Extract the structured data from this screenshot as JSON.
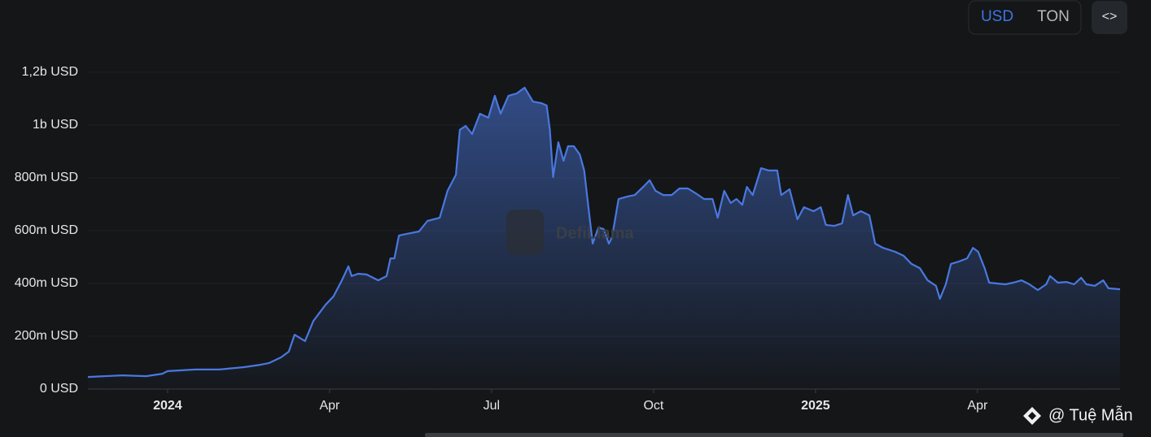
{
  "chart_data": {
    "type": "area",
    "x": [
      2023.877,
      2023.93,
      2023.967,
      2023.992,
      2024.0,
      2024.043,
      2024.08,
      2024.118,
      2024.143,
      2024.156,
      2024.175,
      2024.187,
      2024.196,
      2024.212,
      2024.225,
      2024.244,
      2024.256,
      2024.269,
      2024.279,
      2024.284,
      2024.294,
      2024.307,
      2024.325,
      2024.338,
      2024.344,
      2024.35,
      2024.357,
      2024.369,
      2024.388,
      2024.401,
      2024.42,
      2024.432,
      2024.445,
      2024.451,
      2024.46,
      2024.47,
      2024.482,
      2024.495,
      2024.505,
      2024.514,
      2024.526,
      2024.539,
      2024.551,
      2024.564,
      2024.577,
      2024.585,
      2024.59,
      2024.595,
      2024.603,
      2024.611,
      2024.618,
      2024.627,
      2024.636,
      2024.643,
      2024.648,
      2024.656,
      2024.665,
      2024.673,
      2024.681,
      2024.686,
      2024.696,
      2024.709,
      2024.721,
      2024.734,
      2024.744,
      2024.753,
      2024.765,
      2024.778,
      2024.79,
      2024.803,
      2024.815,
      2024.828,
      2024.841,
      2024.849,
      2024.859,
      2024.869,
      2024.878,
      2024.887,
      2024.894,
      2024.903,
      2024.916,
      2024.928,
      2024.941,
      2024.947,
      2024.96,
      2024.972,
      2024.982,
      2024.997,
      2025.008,
      2025.016,
      2025.029,
      2025.041,
      2025.05,
      2025.058,
      2025.07,
      2025.083,
      2025.092,
      2025.104,
      2025.123,
      2025.136,
      2025.148,
      2025.161,
      2025.173,
      2025.186,
      2025.192,
      2025.201,
      2025.209,
      2025.221,
      2025.234,
      2025.243,
      2025.251,
      2025.261,
      2025.268,
      2025.28,
      2025.293,
      2025.305,
      2025.318,
      2025.33,
      2025.343,
      2025.356,
      2025.362,
      2025.374,
      2025.387,
      2025.399,
      2025.41,
      2025.418,
      2025.431,
      2025.444,
      2025.452,
      2025.47
    ],
    "values": [
      46000000,
      52000000,
      49000000,
      58000000,
      68000000,
      74000000,
      74000000,
      83000000,
      92000000,
      98000000,
      120000000,
      142000000,
      206000000,
      182000000,
      258000000,
      320000000,
      351000000,
      412000000,
      465000000,
      428000000,
      437000000,
      434000000,
      412000000,
      428000000,
      495000000,
      495000000,
      582000000,
      588000000,
      597000000,
      637000000,
      649000000,
      751000000,
      812000000,
      982000000,
      997000000,
      966000000,
      1043000000,
      1028000000,
      1111000000,
      1043000000,
      1111000000,
      1120000000,
      1142000000,
      1089000000,
      1083000000,
      1074000000,
      982000000,
      803000000,
      935000000,
      865000000,
      920000000,
      920000000,
      889000000,
      828000000,
      720000000,
      551000000,
      612000000,
      606000000,
      551000000,
      575000000,
      720000000,
      729000000,
      735000000,
      766000000,
      791000000,
      751000000,
      735000000,
      735000000,
      760000000,
      760000000,
      742000000,
      720000000,
      720000000,
      649000000,
      751000000,
      705000000,
      720000000,
      698000000,
      766000000,
      735000000,
      837000000,
      828000000,
      828000000,
      735000000,
      757000000,
      643000000,
      689000000,
      674000000,
      689000000,
      622000000,
      618000000,
      628000000,
      735000000,
      658000000,
      674000000,
      658000000,
      551000000,
      535000000,
      520000000,
      505000000,
      474000000,
      458000000,
      412000000,
      391000000,
      342000000,
      397000000,
      474000000,
      483000000,
      495000000,
      535000000,
      520000000,
      458000000,
      403000000,
      400000000,
      397000000,
      403000000,
      412000000,
      397000000,
      375000000,
      397000000,
      428000000,
      403000000,
      406000000,
      397000000,
      422000000,
      397000000,
      391000000,
      412000000,
      382000000,
      378000000
    ],
    "color": "#4a78e0",
    "xlim": [
      2023.877,
      2025.47
    ],
    "xticks": [
      2024,
      {
        "value": 2024.25,
        "label": "Apr"
      },
      {
        "value": 2024.5,
        "label": "Jul"
      },
      {
        "value": 2024.75,
        "label": "Oct"
      },
      2025,
      {
        "value": 2025.25,
        "label": "Apr"
      }
    ],
    "ylim": [
      0,
      1200000000
    ],
    "yticks": [
      {
        "value": 0,
        "label": "0 USD"
      },
      {
        "value": 200000000,
        "label": "200m USD"
      },
      {
        "value": 400000000,
        "label": "400m USD"
      },
      {
        "value": 600000000,
        "label": "600m USD"
      },
      {
        "value": 800000000,
        "label": "800m USD"
      },
      {
        "value": 1000000000,
        "label": "1b USD"
      },
      {
        "value": 1200000000,
        "label": "1,2b USD"
      }
    ],
    "grid": true
  },
  "toggle": [
    "USD",
    "TON"
  ],
  "embed_button": "<>",
  "watermark": "DefiLlama",
  "credit": "@ Tuệ Mẫn"
}
